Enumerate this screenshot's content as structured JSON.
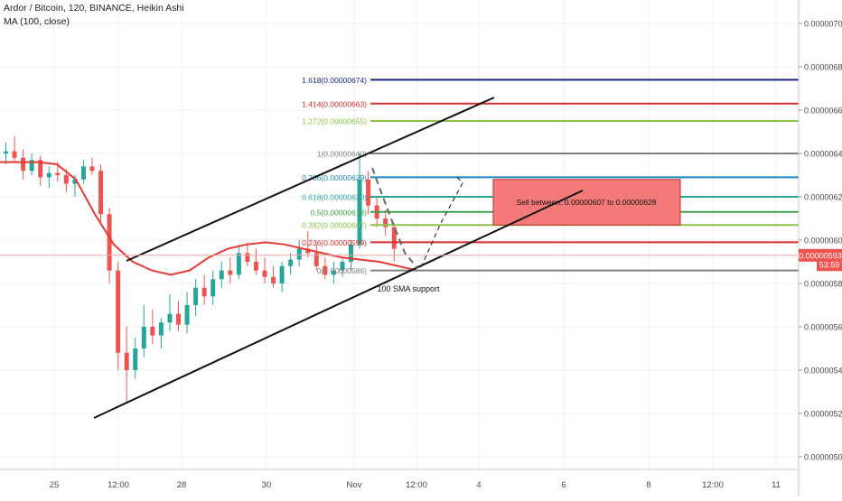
{
  "header": {
    "symbol_line": "Ardor / Bitcoin, 120, BINANCE, Heikin Ashi",
    "indicator_line": "MA (100, close)"
  },
  "colors": {
    "bull": "#26a69a",
    "bear": "#ef5350",
    "ma": "#e53935",
    "grid": "#eef1f5",
    "axis_text": "#4a4a4a",
    "price_badge": "#ef5350",
    "sell_zone_fill": "#f47a7a",
    "sell_zone_border": "#c62828"
  },
  "chart_data": {
    "type": "candlestick",
    "title": "Ardor / Bitcoin, 120, BINANCE, Heikin Ashi",
    "y_ticks": [
      "0.00000700",
      "0.00000680",
      "0.00000660",
      "0.00000640",
      "0.00000620",
      "0.00000600",
      "0.00000580",
      "0.00000560",
      "0.00000540",
      "0.00000520",
      "0.00000500"
    ],
    "y_tick_values": [
      700,
      680,
      660,
      640,
      620,
      600,
      580,
      560,
      540,
      520,
      500
    ],
    "y_unit_note": "values in 1e-8 BTC",
    "x_ticks": [
      "25",
      "12:00",
      "28",
      "30",
      "Nov",
      "12:00",
      "4",
      "6",
      "8",
      "12:00",
      "11"
    ],
    "x_tick_index": [
      60,
      131,
      201,
      295,
      392,
      461,
      530,
      624,
      718,
      789,
      859
    ],
    "current_price": {
      "label": "0.00000593",
      "value": 593
    },
    "countdown": "53:59",
    "candles_ohlc_approx": [
      [
        640,
        645,
        635,
        641
      ],
      [
        641,
        648,
        636,
        638
      ],
      [
        638,
        642,
        628,
        632
      ],
      [
        632,
        640,
        630,
        637
      ],
      [
        637,
        639,
        625,
        629
      ],
      [
        629,
        634,
        624,
        631
      ],
      [
        631,
        636,
        627,
        630
      ],
      [
        630,
        633,
        622,
        626
      ],
      [
        626,
        630,
        620,
        628
      ],
      [
        628,
        637,
        626,
        634
      ],
      [
        634,
        638,
        630,
        632
      ],
      [
        632,
        635,
        608,
        612
      ],
      [
        612,
        615,
        580,
        586
      ],
      [
        586,
        590,
        540,
        548
      ],
      [
        548,
        560,
        525,
        540
      ],
      [
        540,
        555,
        536,
        550
      ],
      [
        550,
        570,
        546,
        560
      ],
      [
        560,
        568,
        552,
        556
      ],
      [
        556,
        564,
        550,
        562
      ],
      [
        562,
        575,
        558,
        566
      ],
      [
        566,
        572,
        558,
        561
      ],
      [
        561,
        576,
        557,
        570
      ],
      [
        570,
        582,
        565,
        578
      ],
      [
        578,
        584,
        570,
        574
      ],
      [
        574,
        586,
        570,
        582
      ],
      [
        582,
        590,
        578,
        586
      ],
      [
        586,
        592,
        580,
        584
      ],
      [
        584,
        598,
        582,
        594
      ],
      [
        594,
        599,
        588,
        590
      ],
      [
        590,
        596,
        584,
        586
      ],
      [
        586,
        592,
        580,
        583
      ],
      [
        583,
        588,
        578,
        580
      ],
      [
        580,
        590,
        576,
        588
      ],
      [
        588,
        594,
        584,
        591
      ],
      [
        591,
        600,
        588,
        596
      ],
      [
        596,
        604,
        592,
        594
      ],
      [
        594,
        598,
        586,
        588
      ],
      [
        588,
        592,
        582,
        584
      ],
      [
        584,
        590,
        580,
        586
      ],
      [
        586,
        592,
        583,
        590
      ],
      [
        590,
        600,
        586,
        598
      ],
      [
        598,
        640,
        596,
        628
      ],
      [
        628,
        632,
        612,
        616
      ],
      [
        616,
        620,
        606,
        610
      ],
      [
        610,
        614,
        602,
        606
      ],
      [
        606,
        608,
        590,
        596
      ]
    ],
    "ma_100_approx": [
      636,
      636,
      636,
      635,
      628,
      612,
      598,
      590,
      586,
      584,
      586,
      592,
      596,
      598,
      599,
      598,
      596,
      594,
      592,
      591,
      590,
      588,
      586
    ],
    "fib_levels": [
      {
        "label": "1.618(0.00000674)",
        "value": 674,
        "color": "#1a237e"
      },
      {
        "label": "1.414(0.00000663)",
        "value": 663,
        "color": "#d32f2f"
      },
      {
        "label": "1.272(0.00000655)",
        "value": 655,
        "color": "#8bc34a"
      },
      {
        "label": "1(0.00000640)",
        "value": 640,
        "color": "#808080"
      },
      {
        "label": "0.786(0.00000629)",
        "value": 629,
        "color": "#1e88b8"
      },
      {
        "label": "0.618(0.00000620)",
        "value": 620,
        "color": "#26a69a"
      },
      {
        "label": "0.5(0.00000613)",
        "value": 613,
        "color": "#43a047"
      },
      {
        "label": "0.382(0.00000607)",
        "value": 607,
        "color": "#8bc34a"
      },
      {
        "label": "0.236(0.00000599)",
        "value": 599,
        "color": "#d32f2f"
      },
      {
        "label": "0(0.00000586)",
        "value": 586,
        "color": "#808080"
      }
    ],
    "sell_zone": {
      "label": "Sell between: 0.00000607 to 0.00000628",
      "low": 607,
      "high": 628
    },
    "annotation": "100 SMA support",
    "grid": true
  }
}
